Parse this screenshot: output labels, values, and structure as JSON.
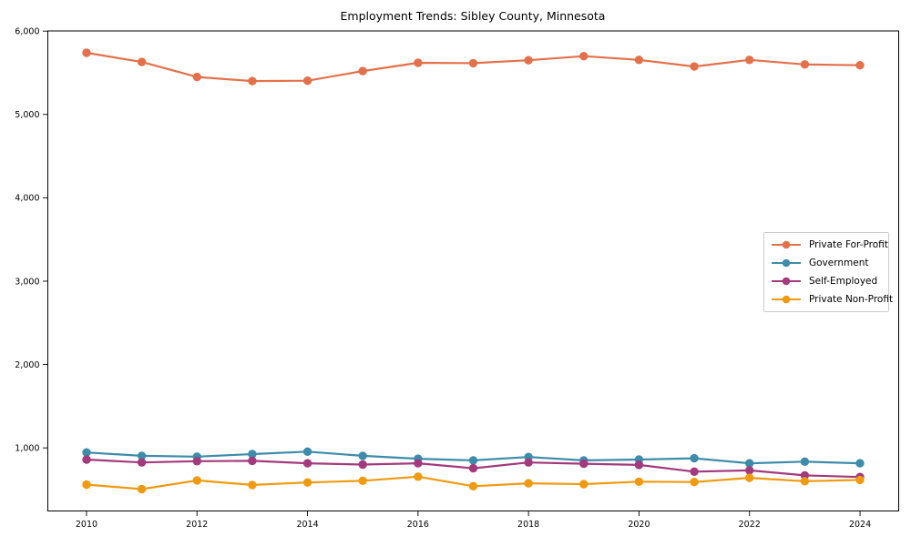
{
  "chart_data": {
    "type": "line",
    "title": "Employment Trends: Sibley County, Minnesota",
    "xlabel": "",
    "ylabel": "",
    "grid": false,
    "x": [
      2010,
      2011,
      2012,
      2013,
      2014,
      2015,
      2016,
      2017,
      2018,
      2019,
      2020,
      2021,
      2022,
      2023,
      2024
    ],
    "x_ticks": [
      2010,
      2012,
      2014,
      2016,
      2018,
      2020,
      2022,
      2024
    ],
    "x_tick_labels": [
      "2010",
      "2012",
      "2014",
      "2016",
      "2018",
      "2020",
      "2022",
      "2024"
    ],
    "y_ticks": [
      1000,
      2000,
      3000,
      4000,
      5000,
      6000
    ],
    "y_tick_labels": [
      "1,000",
      "2,000",
      "3,000",
      "4,000",
      "5,000",
      "6,000"
    ],
    "xlim": [
      2009.3,
      2024.7
    ],
    "ylim": [
      243,
      6002
    ],
    "legend": {
      "position": "center-right",
      "background": "#ffffff",
      "border_color": "#cccccc"
    },
    "series": [
      {
        "name": "Private For-Profit",
        "color": "#e2714b",
        "marker": "circle",
        "values": [
          5740,
          5630,
          5450,
          5400,
          5405,
          5520,
          5620,
          5615,
          5650,
          5700,
          5655,
          5575,
          5655,
          5600,
          5590
        ]
      },
      {
        "name": "Government",
        "color": "#3d8ca9",
        "marker": "circle",
        "values": [
          945,
          905,
          895,
          925,
          955,
          905,
          870,
          850,
          890,
          850,
          860,
          875,
          815,
          835,
          815
        ]
      },
      {
        "name": "Self-Employed",
        "color": "#a23a7d",
        "marker": "circle",
        "values": [
          860,
          825,
          840,
          845,
          815,
          800,
          815,
          755,
          825,
          810,
          795,
          715,
          730,
          670,
          650
        ]
      },
      {
        "name": "Private Non-Profit",
        "color": "#ef9a10",
        "marker": "circle",
        "values": [
          560,
          505,
          610,
          555,
          585,
          605,
          655,
          540,
          575,
          565,
          595,
          590,
          640,
          600,
          615
        ]
      }
    ]
  }
}
